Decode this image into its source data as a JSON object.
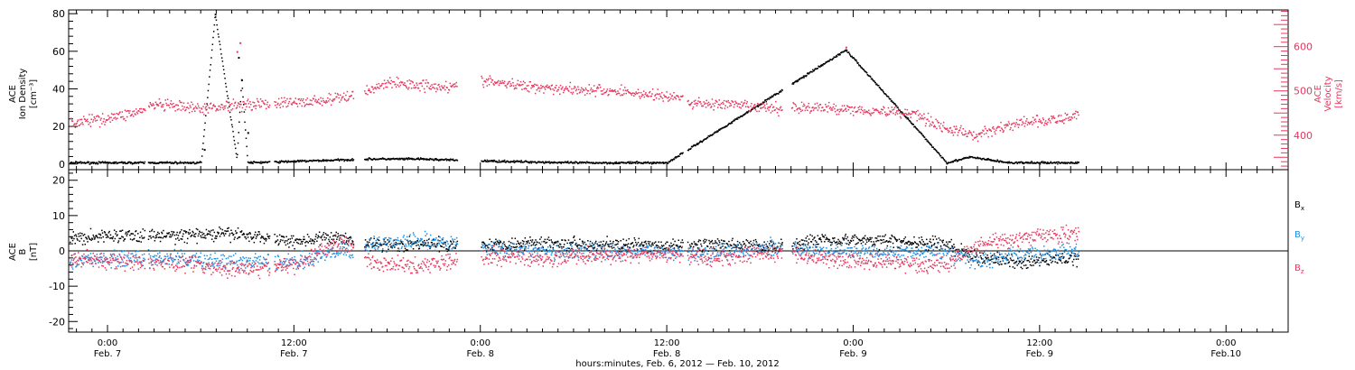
{
  "chart_data": [
    {
      "type": "scatter",
      "panel": "top",
      "ylabel_left": [
        "ACE",
        "Ion Density",
        "[cm⁻³]"
      ],
      "ylabel_right": [
        "ACE",
        "Velocity",
        "[km/s]"
      ],
      "ylim": [
        -3,
        82
      ],
      "yticks": [
        0,
        20,
        40,
        60,
        80
      ],
      "ylim_right": [
        322,
        683
      ],
      "yticks_right": [
        400,
        500,
        600
      ],
      "x_range_hours": [
        -4,
        62.5
      ],
      "gaps_hours": [
        [
          2.4,
          2.6
        ],
        [
          10.4,
          10.7
        ],
        [
          15.8,
          16.5
        ],
        [
          22.5,
          24.0
        ],
        [
          37.0,
          37.3
        ],
        [
          43.4,
          44.0
        ]
      ],
      "series": [
        {
          "name": "Ion Density",
          "axis": "left",
          "color": "#000000",
          "style": "dots",
          "approx_values": [
            {
              "x": -4,
              "y": 1
            },
            {
              "x": 0,
              "y": 1
            },
            {
              "x": 6,
              "y": 1
            },
            {
              "x": 6.9,
              "y": 80
            },
            {
              "x": 8.3,
              "y": 3
            },
            {
              "x": 8.6,
              "y": 45
            },
            {
              "x": 9,
              "y": 1
            },
            {
              "x": 17,
              "y": 3
            },
            {
              "x": 20,
              "y": 3
            },
            {
              "x": 24,
              "y": 2
            },
            {
              "x": 30,
              "y": 1
            },
            {
              "x": 36,
              "y": 1
            },
            {
              "x": 47.5,
              "y": 61
            },
            {
              "x": 54,
              "y": 1
            },
            {
              "x": 55.5,
              "y": 4
            },
            {
              "x": 58,
              "y": 1
            }
          ]
        },
        {
          "name": "Velocity",
          "axis": "right",
          "color": "#e8365d",
          "style": "dots",
          "approx_values": [
            {
              "x": -4,
              "y": 420
            },
            {
              "x": 0,
              "y": 440
            },
            {
              "x": 2,
              "y": 455
            },
            {
              "x": 3,
              "y": 470
            },
            {
              "x": 6,
              "y": 460
            },
            {
              "x": 8,
              "y": 470
            },
            {
              "x": 12,
              "y": 475
            },
            {
              "x": 14,
              "y": 480
            },
            {
              "x": 15.7,
              "y": 490
            },
            {
              "x": 16.5,
              "y": 500
            },
            {
              "x": 18,
              "y": 520
            },
            {
              "x": 20,
              "y": 515
            },
            {
              "x": 22.4,
              "y": 510
            },
            {
              "x": 24,
              "y": 525
            },
            {
              "x": 26,
              "y": 515
            },
            {
              "x": 30,
              "y": 505
            },
            {
              "x": 33,
              "y": 500
            },
            {
              "x": 36.9,
              "y": 485
            },
            {
              "x": 37.3,
              "y": 475
            },
            {
              "x": 40,
              "y": 470
            },
            {
              "x": 43.3,
              "y": 460
            },
            {
              "x": 44,
              "y": 465
            },
            {
              "x": 48,
              "y": 460
            },
            {
              "x": 52,
              "y": 450
            },
            {
              "x": 54,
              "y": 415
            },
            {
              "x": 56,
              "y": 400
            },
            {
              "x": 57,
              "y": 415
            },
            {
              "x": 59,
              "y": 430
            },
            {
              "x": 61,
              "y": 435
            },
            {
              "x": 62,
              "y": 440
            },
            {
              "x": 63,
              "y": 470
            },
            {
              "x": 65,
              "y": 460
            }
          ]
        }
      ]
    },
    {
      "type": "scatter",
      "panel": "bottom",
      "ylabel_left": [
        "ACE",
        "B",
        "[nT]"
      ],
      "ylim": [
        -23,
        23
      ],
      "yticks": [
        -20,
        -10,
        0,
        10,
        20
      ],
      "zero_line": true,
      "x_range_hours": [
        -4,
        62.5
      ],
      "gaps_hours": [
        [
          2.4,
          2.6
        ],
        [
          10.4,
          10.7
        ],
        [
          15.8,
          16.5
        ],
        [
          22.5,
          24.0
        ],
        [
          37.0,
          37.3
        ],
        [
          43.4,
          44.0
        ]
      ],
      "series": [
        {
          "name": "B",
          "subscript": "x",
          "color": "#000000",
          "style": "dots",
          "approx_values": [
            {
              "x": -4,
              "y": 3
            },
            {
              "x": 0,
              "y": 4.5
            },
            {
              "x": 4,
              "y": 4.5
            },
            {
              "x": 8,
              "y": 5
            },
            {
              "x": 12,
              "y": 3
            },
            {
              "x": 15,
              "y": 4
            },
            {
              "x": 17,
              "y": 2
            },
            {
              "x": 20,
              "y": 2
            },
            {
              "x": 24,
              "y": 2
            },
            {
              "x": 28,
              "y": 2.5
            },
            {
              "x": 32,
              "y": 2
            },
            {
              "x": 36,
              "y": 1.5
            },
            {
              "x": 39,
              "y": 2
            },
            {
              "x": 43,
              "y": 1.5
            },
            {
              "x": 46,
              "y": 3.5
            },
            {
              "x": 50,
              "y": 3
            },
            {
              "x": 54,
              "y": 2
            },
            {
              "x": 56,
              "y": -2
            },
            {
              "x": 59,
              "y": -3
            },
            {
              "x": 62,
              "y": -2
            }
          ]
        },
        {
          "name": "B",
          "subscript": "y",
          "color": "#1e8ee0",
          "style": "dots",
          "approx_values": [
            {
              "x": -4,
              "y": -3
            },
            {
              "x": 0,
              "y": -2
            },
            {
              "x": 4,
              "y": -2
            },
            {
              "x": 8,
              "y": -3
            },
            {
              "x": 12,
              "y": -3
            },
            {
              "x": 15,
              "y": 0
            },
            {
              "x": 17,
              "y": 2
            },
            {
              "x": 20,
              "y": 3
            },
            {
              "x": 24,
              "y": 1
            },
            {
              "x": 28,
              "y": 0
            },
            {
              "x": 32,
              "y": 0
            },
            {
              "x": 36,
              "y": 0
            },
            {
              "x": 39,
              "y": 0
            },
            {
              "x": 43,
              "y": 1
            },
            {
              "x": 46,
              "y": 0
            },
            {
              "x": 50,
              "y": 0
            },
            {
              "x": 54,
              "y": 0
            },
            {
              "x": 56,
              "y": -3
            },
            {
              "x": 58,
              "y": -1
            },
            {
              "x": 62,
              "y": 0
            }
          ]
        },
        {
          "name": "B",
          "subscript": "z",
          "color": "#e8365d",
          "style": "dots",
          "approx_values": [
            {
              "x": -4,
              "y": -1
            },
            {
              "x": 0,
              "y": -3
            },
            {
              "x": 4,
              "y": -3
            },
            {
              "x": 8,
              "y": -5
            },
            {
              "x": 12,
              "y": -4
            },
            {
              "x": 15,
              "y": 3
            },
            {
              "x": 17,
              "y": -3
            },
            {
              "x": 20,
              "y": -4
            },
            {
              "x": 24,
              "y": -1
            },
            {
              "x": 28,
              "y": -2
            },
            {
              "x": 32,
              "y": -1
            },
            {
              "x": 36,
              "y": -1
            },
            {
              "x": 39,
              "y": -2
            },
            {
              "x": 43,
              "y": 0
            },
            {
              "x": 46,
              "y": -2
            },
            {
              "x": 50,
              "y": -3
            },
            {
              "x": 54,
              "y": -4
            },
            {
              "x": 56,
              "y": 2
            },
            {
              "x": 59,
              "y": 4
            },
            {
              "x": 62,
              "y": 5
            }
          ]
        }
      ]
    }
  ],
  "x_axis": {
    "ticks": [
      {
        "time": "0:00",
        "date": "Feb. 7",
        "hours": 0
      },
      {
        "time": "12:00",
        "date": "Feb. 7",
        "hours": 12
      },
      {
        "time": "0:00",
        "date": "Feb. 8",
        "hours": 24
      },
      {
        "time": "12:00",
        "date": "Feb. 8",
        "hours": 36
      },
      {
        "time": "0:00",
        "date": "Feb. 9",
        "hours": 48
      },
      {
        "time": "12:00",
        "date": "Feb. 9",
        "hours": 60
      },
      {
        "time": "0:00",
        "date": "Feb.10",
        "hours": 72
      }
    ],
    "minor_ticks_per_hour": 1,
    "range_hours": [
      -2.5,
      76.0
    ],
    "label": "hours:minutes, Feb.  6, 2012 — Feb. 10, 2012"
  }
}
